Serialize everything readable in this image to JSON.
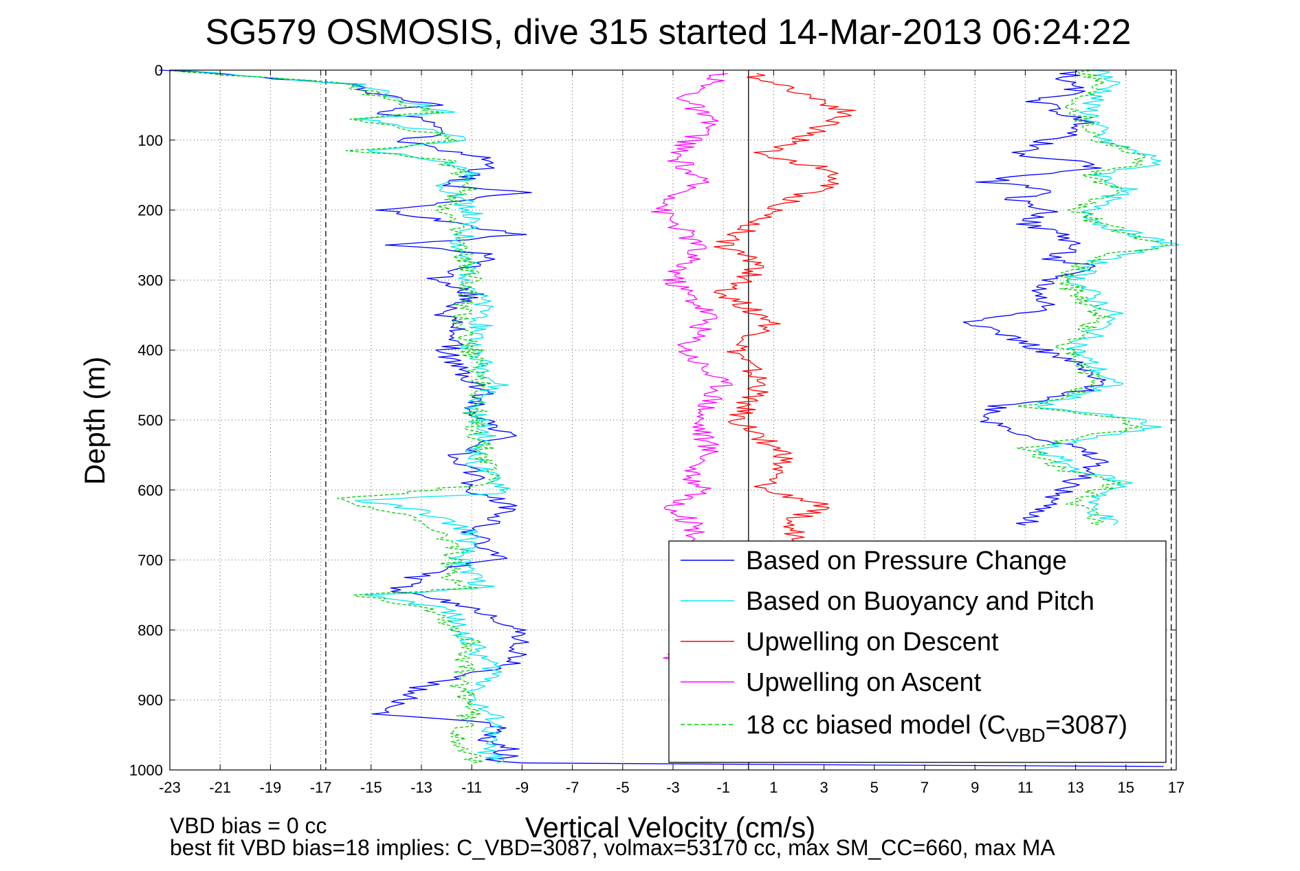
{
  "chart_data": {
    "type": "line",
    "title": "SG579 OSMOSIS, dive 315 started 14-Mar-2013 06:24:22",
    "xlabel": "Vertical Velocity (cm/s)",
    "ylabel": "Depth (m)",
    "xlim": [
      -23,
      17
    ],
    "ylim": [
      1000,
      0
    ],
    "y_reversed": true,
    "grid": true,
    "grid_style": "dotted",
    "xticks": [
      -23,
      -21,
      -19,
      -17,
      -15,
      -13,
      -11,
      -9,
      -7,
      -5,
      -3,
      -1,
      1,
      3,
      5,
      7,
      9,
      11,
      13,
      15,
      17
    ],
    "yticks": [
      0,
      100,
      200,
      300,
      400,
      500,
      600,
      700,
      800,
      900,
      1000
    ],
    "vertical_lines": [
      {
        "x": -16.8,
        "style": "dashed",
        "color": "#000000"
      },
      {
        "x": 0,
        "style": "solid",
        "color": "#000000"
      },
      {
        "x": 16.8,
        "style": "dashed",
        "color": "#000000"
      }
    ],
    "legend_position": "bottom-right",
    "series": [
      {
        "name": "Based on Pressure Change",
        "color": "#0000ff",
        "style": "solid",
        "segments": [
          {
            "x": [
              -23,
              -16,
              -14.5,
              -12.5,
              -15,
              -12.5,
              -12,
              -14,
              -12,
              -10,
              -11,
              -12,
              -9,
              -14.5,
              -12,
              -9,
              -14,
              -10,
              -11,
              -12.5,
              -11,
              -12,
              -11.5,
              -12,
              -11.5,
              -10.5,
              -11,
              -10.5,
              -9.5,
              -11,
              -12,
              -10.5,
              -11.5,
              -10,
              -9.5,
              -11,
              -10,
              -13,
              -14,
              -12,
              -10,
              -9,
              -9.5,
              -13,
              -14.5,
              -11,
              -10,
              -10.5,
              -9.5,
              -10.5,
              -9.5,
              -10,
              -9
            ],
            "y": [
              0,
              20,
              35,
              50,
              60,
              70,
              90,
              100,
              115,
              130,
              150,
              165,
              175,
              200,
              215,
              235,
              250,
              265,
              280,
              300,
              320,
              350,
              380,
              400,
              430,
              460,
              480,
              500,
              520,
              540,
              560,
              580,
              600,
              610,
              630,
              660,
              700,
              720,
              745,
              760,
              780,
              810,
              850,
              880,
              920,
              930,
              940,
              960,
              970,
              975,
              980,
              985,
              990
            ]
          },
          {
            "x": [
              -9,
              5,
              16.5
            ],
            "y": [
              990,
              993,
              995
            ]
          },
          {
            "x": [
              13,
              12.5,
              13,
              11.5,
              12.5,
              13.5,
              12,
              10.5,
              13,
              14,
              11,
              9.5,
              12,
              10.5,
              12,
              11,
              12.5,
              13,
              12,
              13.5,
              12,
              11.5,
              12,
              9,
              11,
              13,
              14,
              12,
              10,
              9.5,
              11,
              13,
              14,
              12.5,
              11
            ],
            "y": [
              0,
              15,
              30,
              45,
              60,
              80,
              100,
              120,
              130,
              140,
              150,
              160,
              170,
              185,
              200,
              220,
              235,
              250,
              270,
              280,
              300,
              320,
              340,
              360,
              390,
              420,
              450,
              470,
              480,
              500,
              520,
              540,
              560,
              600,
              650
            ]
          }
        ]
      },
      {
        "name": "Based on Buoyancy and Pitch",
        "color": "#00e5ee",
        "style": "solid",
        "segments": [
          {
            "x": [
              -23,
              -15.5,
              -14,
              -12,
              -15.5,
              -12,
              -11.5,
              -15,
              -12,
              -11,
              -12,
              -11,
              -11.5,
              -11,
              -10.5,
              -11,
              -10,
              -11,
              -10.5,
              -11,
              -10,
              -9.5,
              -10,
              -15.5,
              -13,
              -11,
              -11.5,
              -11,
              -10.5,
              -15,
              -12,
              -11,
              -10,
              -11,
              -10,
              -10.5,
              -10
            ],
            "y": [
              0,
              20,
              40,
              60,
              70,
              90,
              100,
              115,
              130,
              150,
              165,
              200,
              250,
              300,
              350,
              400,
              450,
              480,
              520,
              560,
              590,
              600,
              605,
              615,
              630,
              660,
              700,
              720,
              740,
              750,
              770,
              820,
              860,
              900,
              930,
              960,
              990
            ]
          },
          {
            "x": [
              14,
              14.5,
              13.5,
              14,
              16.5,
              14,
              15,
              13.5,
              14,
              16.8,
              14,
              13,
              14.5,
              13,
              14.5,
              11.5,
              15.5,
              16,
              11.5,
              13,
              15,
              13.5,
              14.5
            ],
            "y": [
              0,
              20,
              50,
              100,
              130,
              150,
              170,
              200,
              220,
              250,
              270,
              300,
              350,
              400,
              450,
              480,
              500,
              510,
              540,
              570,
              590,
              620,
              650
            ]
          }
        ]
      },
      {
        "name": "Upwelling on Descent",
        "color": "#ff0000",
        "style": "solid",
        "segments": [
          {
            "x": [
              0,
              2,
              4,
              2,
              0.5,
              3,
              3.5,
              2,
              1,
              -1,
              0.5,
              -1,
              1,
              -0.5,
              0.5,
              -0.5,
              1.5,
              0.5,
              3,
              1.5,
              3,
              0
            ],
            "y": [
              5,
              30,
              60,
              100,
              120,
              140,
              160,
              180,
              200,
              250,
              280,
              320,
              360,
              400,
              450,
              500,
              550,
              600,
              620,
              650,
              700,
              990
            ]
          }
        ]
      },
      {
        "name": "Upwelling on Ascent",
        "color": "#ff00ff",
        "style": "solid",
        "segments": [
          {
            "x": [
              -1,
              -2.5,
              -1.5,
              -3,
              -2,
              -3.5,
              -2,
              -3,
              -1.5,
              -2.5,
              -1,
              -2,
              -1.5,
              -2.5,
              -1.5,
              -3,
              -2,
              -3
            ],
            "y": [
              5,
              40,
              80,
              120,
              160,
              200,
              250,
              300,
              350,
              400,
              450,
              500,
              550,
              580,
              600,
              620,
              660,
              850
            ]
          }
        ]
      },
      {
        "name": "18 cc biased model (C_VBD=3087)",
        "color": "#00cc00",
        "style": "dashed",
        "segments": [
          {
            "x": [
              -23,
              -16,
              -14.5,
              -12.5,
              -16,
              -12.5,
              -12,
              -15.5,
              -12,
              -11,
              -12,
              -11.5,
              -11,
              -11.5,
              -11,
              -10.5,
              -11,
              -10.5,
              -10,
              -16,
              -13.5,
              -11.5,
              -12,
              -11,
              -15.5,
              -12.5,
              -11,
              -11.5,
              -11,
              -11.5,
              -11
            ],
            "y": [
              0,
              20,
              40,
              60,
              70,
              90,
              100,
              115,
              130,
              160,
              200,
              250,
              300,
              350,
              400,
              450,
              500,
              550,
              590,
              612,
              640,
              680,
              720,
              740,
              750,
              770,
              820,
              870,
              910,
              950,
              990
            ]
          },
          {
            "x": [
              13.5,
              14,
              13,
              14,
              16,
              13.5,
              14.5,
              13,
              14,
              16.5,
              13.5,
              12.5,
              14,
              12.5,
              14,
              11,
              15,
              15.5,
              11,
              12.5,
              14.5,
              13,
              14
            ],
            "y": [
              0,
              20,
              50,
              100,
              130,
              150,
              170,
              200,
              220,
              250,
              270,
              300,
              350,
              400,
              450,
              480,
              500,
              510,
              540,
              570,
              590,
              620,
              650
            ]
          }
        ]
      }
    ]
  },
  "legend": {
    "items": [
      {
        "label": "Based on Pressure Change",
        "color": "#0000ff",
        "dash": ""
      },
      {
        "label": "Based on Buoyancy and Pitch",
        "color": "#00e5ee",
        "dash": ""
      },
      {
        "label": "Upwelling on Descent",
        "color": "#ff0000",
        "dash": ""
      },
      {
        "label": "Upwelling on Ascent",
        "color": "#ff00ff",
        "dash": ""
      }
    ],
    "model_item": {
      "prefix": "18 cc biased model (C",
      "sub": "VBD",
      "suffix": "=3087)",
      "color": "#00cc00",
      "dash": "6,4"
    }
  },
  "footer": {
    "line1": "VBD bias = 0 cc",
    "line2": "best fit VBD bias=18 implies: C_VBD=3087, volmax=53170 cc, max SM_CC=660, max MA"
  }
}
